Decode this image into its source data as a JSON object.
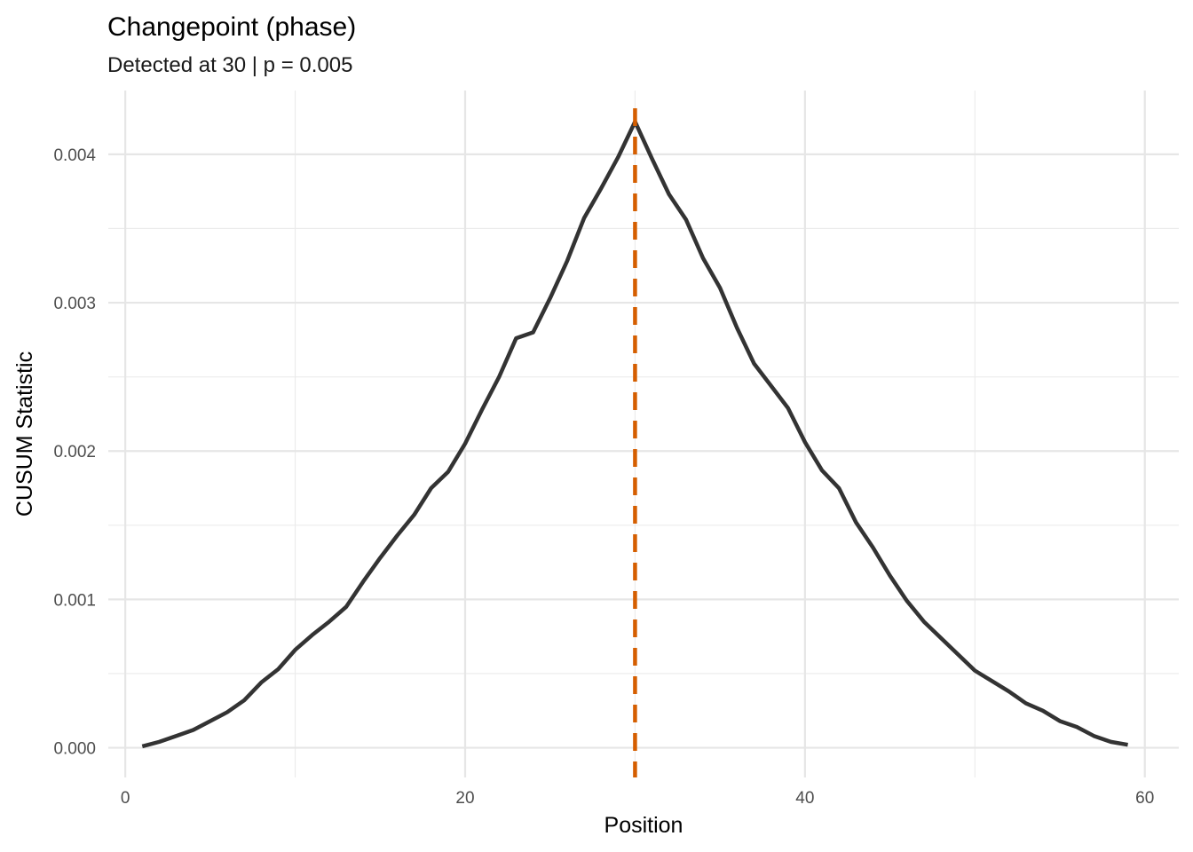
{
  "chart_data": {
    "type": "line",
    "title": "Changepoint (phase)",
    "subtitle": "Detected at 30 | p = 0.005",
    "xlabel": "Position",
    "ylabel": "CUSUM Statistic",
    "xlim": [
      -1,
      62
    ],
    "ylim": [
      -0.0002,
      0.00443
    ],
    "x_ticks": [
      0,
      20,
      40,
      60
    ],
    "x_tick_labels": [
      "0",
      "20",
      "40",
      "60"
    ],
    "y_ticks": [
      0,
      0.001,
      0.002,
      0.003,
      0.004
    ],
    "y_tick_labels": [
      "0.000",
      "0.001",
      "0.002",
      "0.003",
      "0.004"
    ],
    "grid": true,
    "changepoint": {
      "x": 30,
      "color": "#d55e00",
      "style": "dashed"
    },
    "line_color": "#333333",
    "series": [
      {
        "x": [
          1,
          2,
          3,
          4,
          5,
          6,
          7,
          8,
          9,
          10,
          11,
          12,
          13,
          14,
          15,
          16,
          17,
          18,
          19,
          20,
          21,
          22,
          23,
          24,
          25,
          26,
          27,
          28,
          29,
          30,
          31,
          32,
          33,
          34,
          35,
          36,
          37,
          38,
          39,
          40,
          41,
          42,
          43,
          44,
          45,
          46,
          47,
          48,
          49,
          50,
          51,
          52,
          53,
          54,
          55,
          56,
          57,
          58,
          59
        ],
        "values": [
          1e-05,
          4e-05,
          8e-05,
          0.00012,
          0.00018,
          0.00024,
          0.00032,
          0.00044,
          0.00053,
          0.00066,
          0.00076,
          0.00085,
          0.00095,
          0.00112,
          0.00128,
          0.00143,
          0.00157,
          0.00175,
          0.00186,
          0.00205,
          0.00228,
          0.0025,
          0.00276,
          0.0028,
          0.00303,
          0.00328,
          0.00357,
          0.00377,
          0.00398,
          0.00422,
          0.00397,
          0.00373,
          0.00356,
          0.0033,
          0.0031,
          0.00283,
          0.00259,
          0.00244,
          0.00229,
          0.00206,
          0.00187,
          0.00175,
          0.00152,
          0.00135,
          0.00116,
          0.00099,
          0.00085,
          0.00074,
          0.00063,
          0.00052,
          0.00045,
          0.00038,
          0.0003,
          0.00025,
          0.00018,
          0.00014,
          8e-05,
          4e-05,
          2e-05
        ]
      }
    ]
  }
}
